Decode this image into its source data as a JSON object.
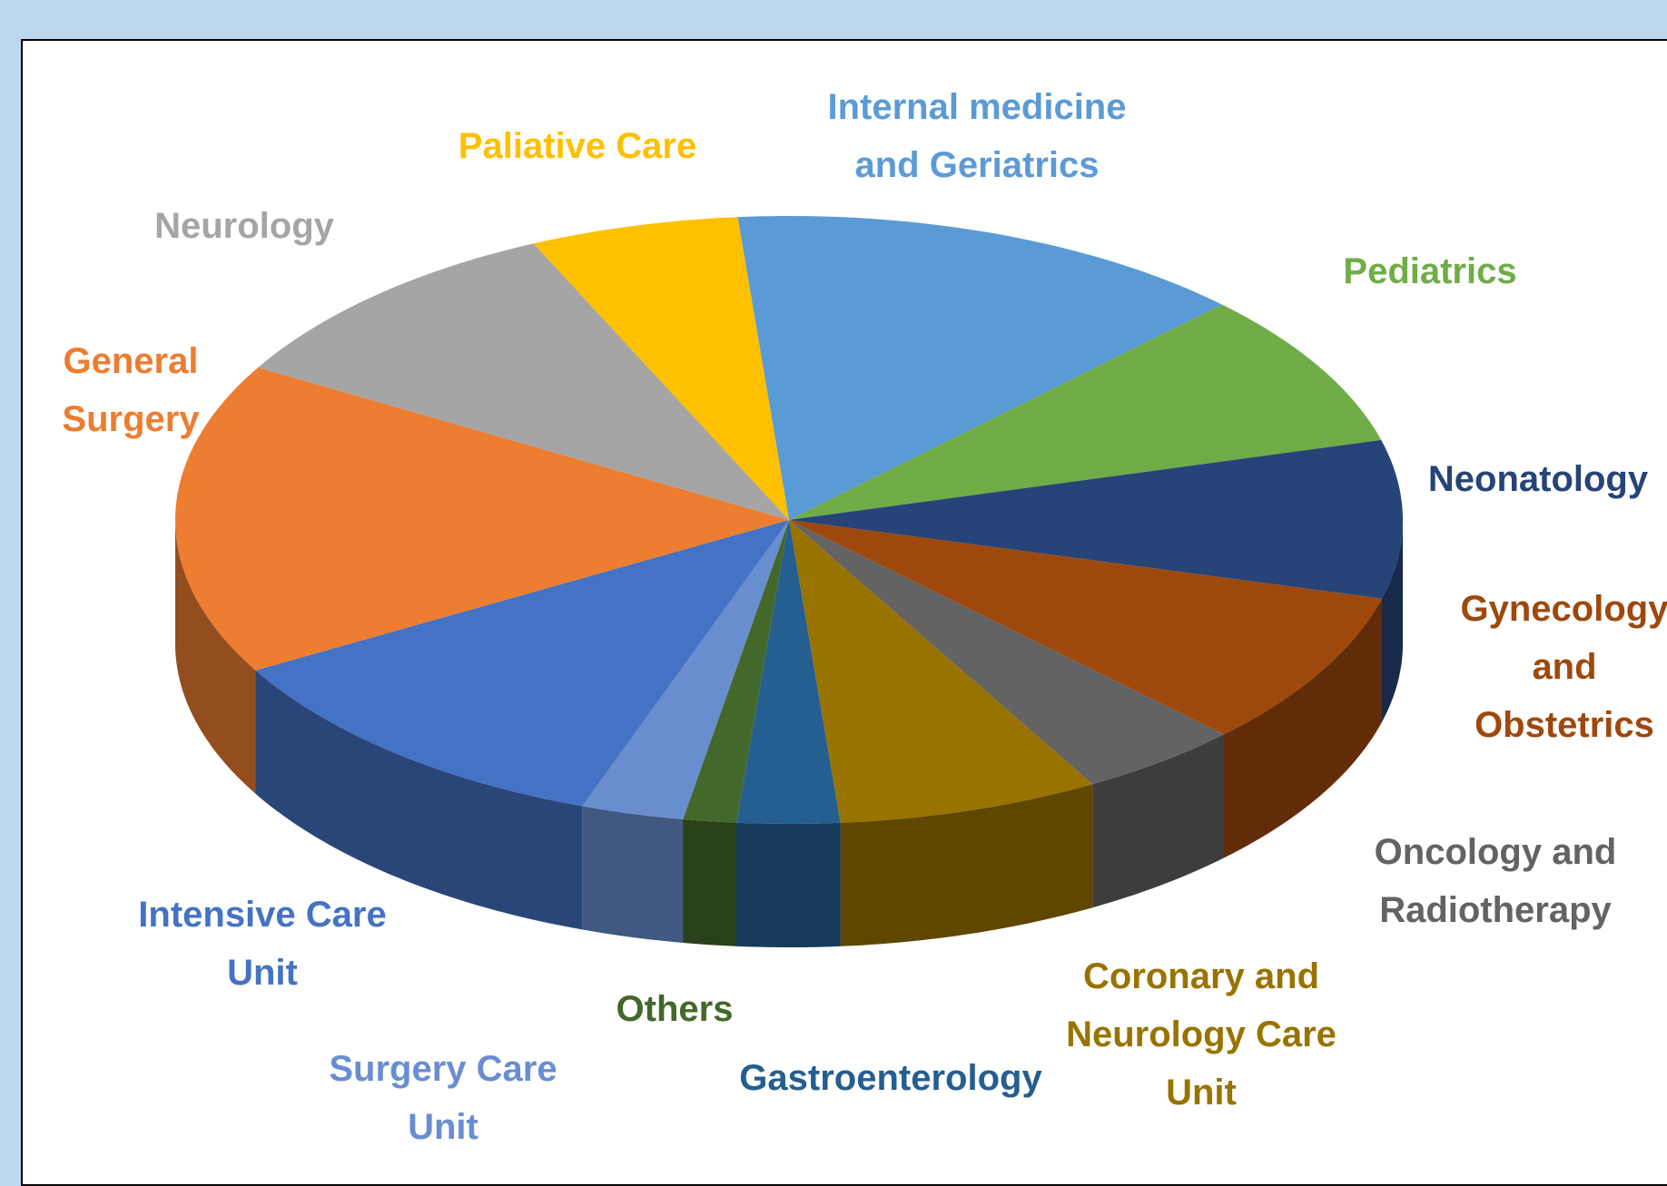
{
  "chart_data": {
    "type": "pie",
    "three_d": true,
    "categories": [
      "Internal medicine and Geriatrics",
      "Pediatrics",
      "Neonatology",
      "Gynecology and Obstetrics",
      "Oncology and Radiotherapy",
      "Coronary and Neurology Care Unit",
      "Gastroenterology",
      "Others",
      "Surgery Care Unit",
      "Intensive Care Unit",
      "General Surgery",
      "Neurology",
      "Paliative Care"
    ],
    "values": [
      13.8,
      8.3,
      8.4,
      8.3,
      4.3,
      6.9,
      2.7,
      1.4,
      2.7,
      11.3,
      16.6,
      9.8,
      5.5
    ],
    "colors": [
      "#5B9BD5",
      "#70AD47",
      "#264478",
      "#9E480E",
      "#636363",
      "#997300",
      "#255E91",
      "#43682B",
      "#698ED0",
      "#4472C4",
      "#ED7D31",
      "#A5A5A5",
      "#FFC000"
    ]
  }
}
